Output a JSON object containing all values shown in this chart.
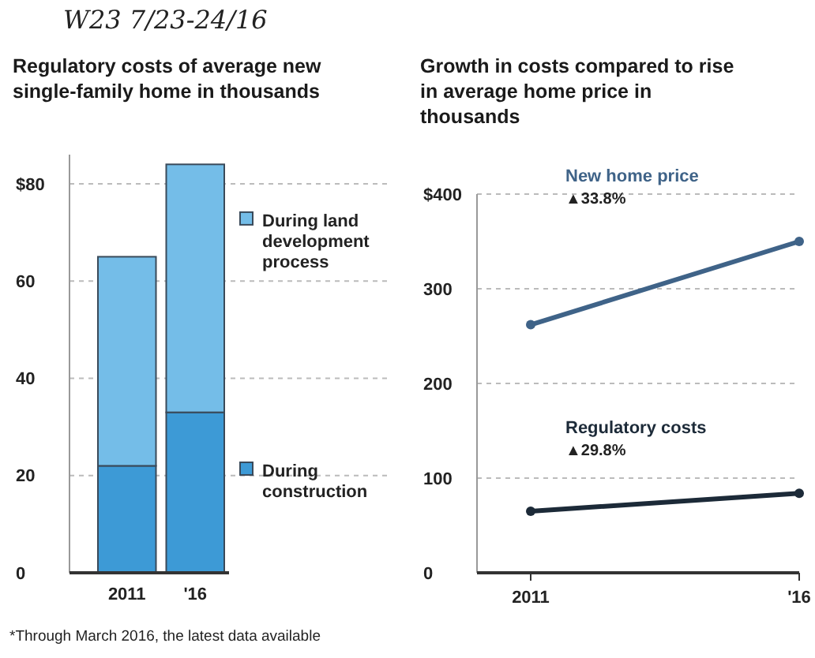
{
  "chart_data": [
    {
      "type": "bar",
      "title": "Regulatory costs of average new single-family home in thousands",
      "stacked": true,
      "categories": [
        "2011",
        "'16"
      ],
      "series": [
        {
          "name": "During construction",
          "color": "#3d9ad6",
          "values": [
            22,
            33
          ]
        },
        {
          "name": "During land development process",
          "color": "#74bde8",
          "values": [
            43,
            51
          ]
        }
      ],
      "ylim": [
        0,
        86
      ],
      "yticks": [
        0,
        20,
        40,
        60,
        {
          "value": 80,
          "label": "$80"
        }
      ],
      "grid": "y",
      "legend": "right",
      "annotations": [
        "W23   7/23-24/16",
        "*Through March 2016, the latest data available"
      ]
    },
    {
      "type": "line",
      "title": "Growth in costs compared to rise in average home price in thousands",
      "x": [
        2011,
        2016
      ],
      "series": [
        {
          "name": "New home price",
          "color": "#3f6388",
          "values": [
            262,
            350
          ]
        },
        {
          "name": "Regulatory costs",
          "color": "#1c2a38",
          "values": [
            65,
            84
          ]
        }
      ],
      "xlim": [
        2010,
        2016
      ],
      "xticks": [
        2011,
        {
          "value": 2016,
          "label": "'16"
        }
      ],
      "ylim": [
        0,
        400
      ],
      "yticks": [
        0,
        100,
        200,
        300,
        {
          "value": 400,
          "label": "$400"
        }
      ],
      "grid": "y",
      "marker": "circle",
      "line_style": "solid",
      "annotations": [
        "▲33.8%",
        "▲29.8%"
      ]
    }
  ]
}
